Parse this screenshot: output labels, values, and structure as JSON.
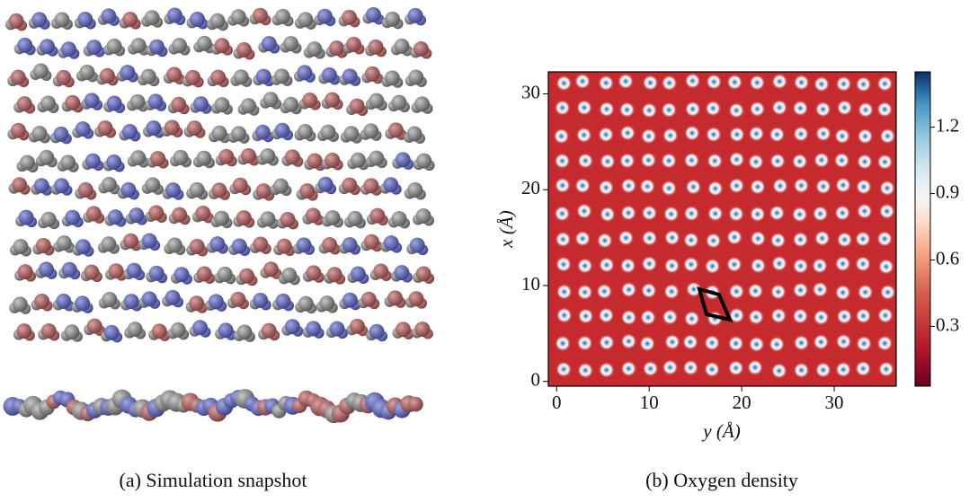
{
  "captions": [
    "(a) Simulation snapshot",
    "(b) Oxygen density"
  ],
  "chart_data": {
    "type": "heatmap",
    "xlabel": "y (Å)",
    "ylabel": "x (Å)",
    "xlim": [
      -0.9,
      36.7
    ],
    "xticks": [
      0,
      10,
      20,
      30
    ],
    "ylim": [
      -0.5,
      32.3
    ],
    "yticks": [
      0,
      10,
      20,
      30
    ],
    "colorbar": {
      "lim": [
        0.03,
        1.45
      ],
      "ticks": [
        0.3,
        0.6,
        0.9,
        1.2
      ],
      "colormap": "RdBu"
    }
  }
}
